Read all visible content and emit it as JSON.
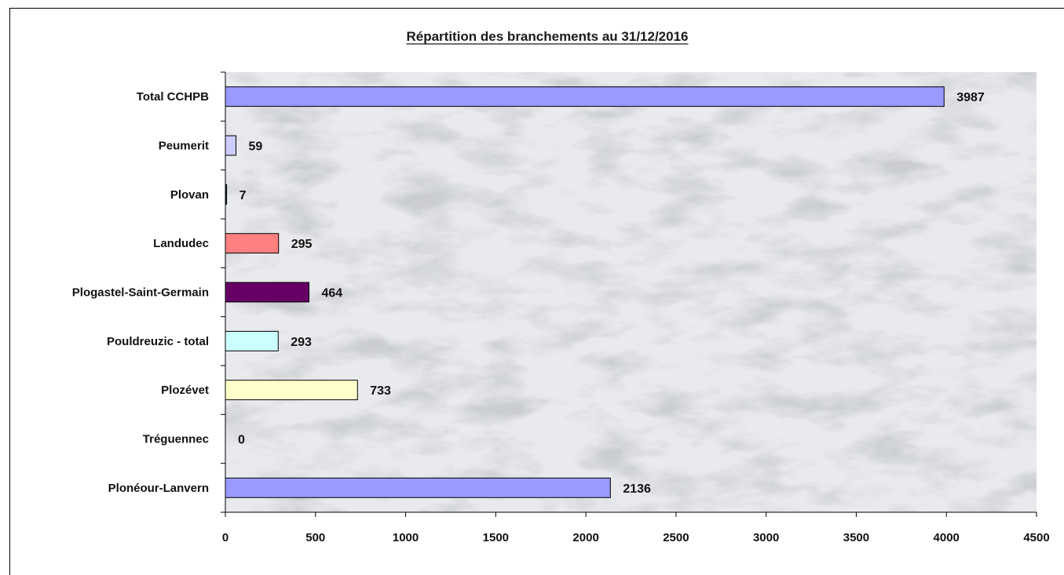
{
  "chart_data": {
    "type": "bar",
    "orientation": "horizontal",
    "title": "Répartition des branchements au 31/12/2016",
    "xlabel": "",
    "ylabel": "",
    "xlim": [
      0,
      4500
    ],
    "x_ticks": [
      0,
      500,
      1000,
      1500,
      2000,
      2500,
      3000,
      3500,
      4000,
      4500
    ],
    "grid": false,
    "legend": "none",
    "background": "grey marble texture",
    "categories": [
      "Total CCHPB",
      "Peumerit",
      "Plovan",
      "Landudec",
      "Plogastel-Saint-Germain",
      "Pouldreuzic - total",
      "Plozévet",
      "Tréguennec",
      "Plonéour-Lanvern"
    ],
    "values": [
      3987,
      59,
      7,
      295,
      464,
      293,
      733,
      0,
      2136
    ],
    "bar_colors": [
      "#9999ff",
      "#ccccff",
      "#1f3864",
      "#ff8080",
      "#660066",
      "#ccffff",
      "#ffffcc",
      "#9999ff",
      "#9999ff"
    ]
  }
}
